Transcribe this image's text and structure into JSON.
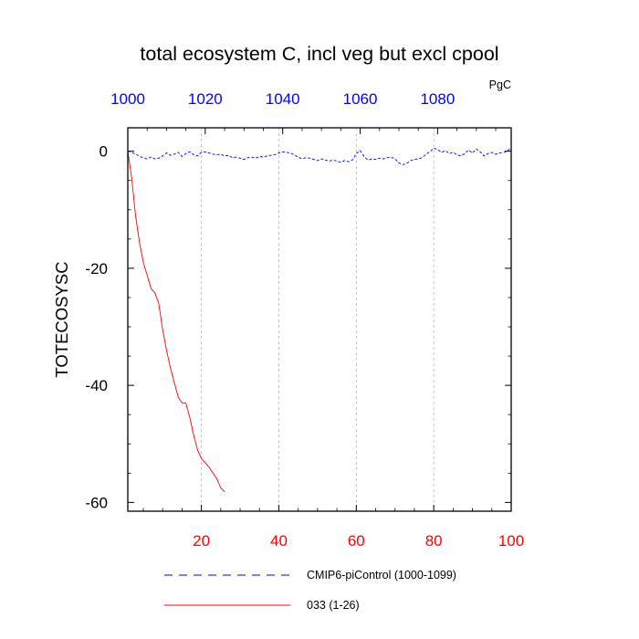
{
  "chart_data": {
    "type": "line",
    "title": "total ecosystem C, incl veg but excl cpool",
    "units": "PgC",
    "ylabel": "TOTECOSYSC",
    "xlabel": "",
    "bottom_axis": {
      "range": [
        1,
        100
      ],
      "ticks": [
        20,
        40,
        60,
        80,
        100
      ],
      "tick_color": "#ff0000"
    },
    "top_axis": {
      "range": [
        1000,
        1099
      ],
      "ticks": [
        1000,
        1020,
        1040,
        1060,
        1080
      ],
      "tick_color": "#0000ff"
    },
    "ylim": [
      -61.5,
      4.0
    ],
    "yticks": [
      0,
      -20,
      -40,
      -60
    ],
    "grid": "vertical-dashed",
    "series": [
      {
        "name": "CMIP6-piControl (1000-1099)",
        "color": "#0000ff",
        "dash": "dashed",
        "axis": "top",
        "x": [
          1000,
          1001,
          1002,
          1003,
          1004,
          1005,
          1006,
          1007,
          1008,
          1009,
          1010,
          1011,
          1012,
          1013,
          1014,
          1015,
          1016,
          1017,
          1018,
          1019,
          1020,
          1021,
          1022,
          1023,
          1024,
          1025,
          1026,
          1027,
          1028,
          1029,
          1030,
          1031,
          1032,
          1033,
          1034,
          1035,
          1036,
          1037,
          1038,
          1039,
          1040,
          1041,
          1042,
          1043,
          1044,
          1045,
          1046,
          1047,
          1048,
          1049,
          1050,
          1051,
          1052,
          1053,
          1054,
          1055,
          1056,
          1057,
          1058,
          1059,
          1060,
          1061,
          1062,
          1063,
          1064,
          1065,
          1066,
          1067,
          1068,
          1069,
          1070,
          1071,
          1072,
          1073,
          1074,
          1075,
          1076,
          1077,
          1078,
          1079,
          1080,
          1081,
          1082,
          1083,
          1084,
          1085,
          1086,
          1087,
          1088,
          1089,
          1090,
          1091,
          1092,
          1093,
          1094,
          1095,
          1096,
          1097,
          1098,
          1099
        ],
        "values": [
          0.0,
          -0.2,
          -0.5,
          -0.8,
          -1.2,
          -1.3,
          -1.0,
          -1.3,
          -1.2,
          -0.8,
          -0.3,
          -0.7,
          -0.5,
          -0.2,
          -0.9,
          -0.4,
          -0.1,
          -0.6,
          -0.8,
          -0.2,
          -0.1,
          -0.3,
          -0.5,
          -0.6,
          -0.5,
          -0.8,
          -0.7,
          -1.1,
          -1.0,
          -1.2,
          -1.4,
          -1.1,
          -1.0,
          -1.2,
          -0.9,
          -1.0,
          -0.8,
          -0.7,
          -0.6,
          -0.3,
          -0.1,
          -0.2,
          -0.3,
          -0.6,
          -1.0,
          -1.3,
          -1.1,
          -1.2,
          -1.4,
          -1.6,
          -1.3,
          -1.5,
          -1.7,
          -1.5,
          -1.7,
          -1.9,
          -1.6,
          -1.8,
          -1.5,
          -0.4,
          0.1,
          -0.9,
          -1.5,
          -1.3,
          -1.4,
          -1.2,
          -1.3,
          -1.1,
          -1.0,
          -1.3,
          -2.0,
          -2.3,
          -2.1,
          -1.6,
          -1.4,
          -1.3,
          -1.1,
          -0.5,
          -0.1,
          0.5,
          0.3,
          -0.2,
          0.1,
          -0.4,
          -0.2,
          -0.6,
          -0.8,
          -0.4,
          0.2,
          -0.3,
          0.4,
          -0.1,
          -0.8,
          -0.4,
          -0.2,
          -0.5,
          -0.3,
          -0.2,
          0.0,
          0.7
        ]
      },
      {
        "name": "033 (1-26)",
        "color": "#ff0000",
        "dash": "solid",
        "axis": "bottom",
        "x": [
          1,
          2,
          3,
          4,
          5,
          6,
          7,
          8,
          9,
          10,
          11,
          12,
          13,
          14,
          15,
          16,
          17,
          18,
          19,
          20,
          21,
          22,
          23,
          24,
          25,
          26
        ],
        "values": [
          0.0,
          -4.5,
          -11.0,
          -15.5,
          -19.0,
          -21.2,
          -23.5,
          -24.2,
          -26.0,
          -30.5,
          -34.0,
          -37.0,
          -39.5,
          -42.0,
          -43.0,
          -43.0,
          -45.5,
          -48.5,
          -51.0,
          -52.5,
          -53.2,
          -54.0,
          -55.0,
          -56.0,
          -57.5,
          -58.2
        ]
      }
    ]
  }
}
